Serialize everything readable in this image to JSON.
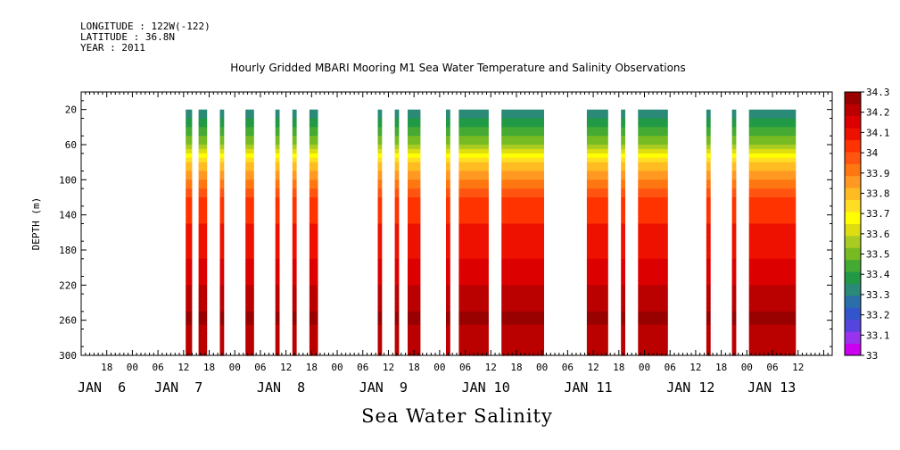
{
  "header": {
    "longitude": "LONGITUDE : 122W(-122)",
    "latitude": "LATITUDE : 36.8N",
    "year": "YEAR : 2011"
  },
  "chart_data": {
    "type": "heatmap",
    "title": "Hourly Gridded MBARI Mooring M1 Sea Water Temperature and Salinity Observations",
    "bottom_title": "Sea Water Salinity",
    "ylabel": "DEPTH (m)",
    "ylim": [
      0,
      300
    ],
    "y_ticks": [
      20,
      60,
      100,
      140,
      180,
      220,
      260,
      300
    ],
    "xlim_hours": [
      0,
      176
    ],
    "x_start": "2011-01-06 00:00",
    "hour_ticks": [
      {
        "h": 6,
        "label": "18"
      },
      {
        "h": 12,
        "label": "00"
      },
      {
        "h": 18,
        "label": "06"
      },
      {
        "h": 24,
        "label": "12"
      },
      {
        "h": 30,
        "label": "18"
      },
      {
        "h": 36,
        "label": "00"
      },
      {
        "h": 42,
        "label": "06"
      },
      {
        "h": 48,
        "label": "12"
      },
      {
        "h": 54,
        "label": "18"
      },
      {
        "h": 60,
        "label": "00"
      },
      {
        "h": 66,
        "label": "06"
      },
      {
        "h": 72,
        "label": "12"
      },
      {
        "h": 78,
        "label": "18"
      },
      {
        "h": 84,
        "label": "00"
      },
      {
        "h": 90,
        "label": "06"
      },
      {
        "h": 96,
        "label": "12"
      },
      {
        "h": 102,
        "label": "18"
      },
      {
        "h": 108,
        "label": "00"
      },
      {
        "h": 114,
        "label": "06"
      },
      {
        "h": 120,
        "label": "12"
      },
      {
        "h": 126,
        "label": "18"
      },
      {
        "h": 132,
        "label": "00"
      },
      {
        "h": 138,
        "label": "06"
      },
      {
        "h": 144,
        "label": "12"
      },
      {
        "h": 150,
        "label": "18"
      },
      {
        "h": 156,
        "label": "00"
      },
      {
        "h": 162,
        "label": "06"
      },
      {
        "h": 168,
        "label": "12"
      }
    ],
    "day_labels": [
      {
        "h": 0,
        "label": "JAN  6"
      },
      {
        "h": 18,
        "label": "JAN  7"
      },
      {
        "h": 42,
        "label": "JAN  8"
      },
      {
        "h": 66,
        "label": "JAN  9"
      },
      {
        "h": 90,
        "label": "JAN 10"
      },
      {
        "h": 114,
        "label": "JAN 11"
      },
      {
        "h": 138,
        "label": "JAN 12"
      },
      {
        "h": 157,
        "label": "JAN 13"
      }
    ],
    "colorbar": {
      "levels": [
        "33",
        "33.1",
        "33.2",
        "33.3",
        "33.4",
        "33.5",
        "33.6",
        "33.7",
        "33.8",
        "33.9",
        "34",
        "34.1",
        "34.2",
        "34.3"
      ],
      "colors": [
        "#cc00ee",
        "#9933ee",
        "#5544dd",
        "#3355cc",
        "#2a6faa",
        "#2b8a77",
        "#229944",
        "#44aa33",
        "#77bb22",
        "#aacc22",
        "#dddd11",
        "#ffff00",
        "#ffdd22",
        "#ffbb22",
        "#ff9922",
        "#ff7711",
        "#ff5511",
        "#ff3300",
        "#ee1100",
        "#dd0000",
        "#bb0000",
        "#990000"
      ]
    },
    "data_segments_hours": [
      [
        24.5,
        26
      ],
      [
        27.5,
        29.5
      ],
      [
        32.5,
        33.5
      ],
      [
        38.5,
        40.5
      ],
      [
        45.5,
        46.5
      ],
      [
        49.5,
        50.5
      ],
      [
        53.5,
        55.5
      ],
      [
        69.5,
        70.5
      ],
      [
        73.5,
        74.5
      ],
      [
        76.5,
        79.5
      ],
      [
        85.5,
        86.5
      ],
      [
        88.5,
        95.5
      ],
      [
        98.5,
        108.5
      ],
      [
        118.5,
        123.5
      ],
      [
        126.5,
        127.5
      ],
      [
        130.5,
        137.5
      ],
      [
        146.5,
        147.5
      ],
      [
        152.5,
        153.5
      ],
      [
        156.5,
        167.5
      ]
    ],
    "salinity_profile": {
      "depth_m": [
        20,
        40,
        60,
        80,
        100,
        120,
        140,
        160,
        180,
        200,
        220,
        240,
        260,
        280,
        300
      ],
      "salinity": [
        33.3,
        33.4,
        33.55,
        33.75,
        33.9,
        34.0,
        34.05,
        34.08,
        34.1,
        34.15,
        34.18,
        34.23,
        34.25,
        34.22,
        34.18
      ]
    }
  }
}
